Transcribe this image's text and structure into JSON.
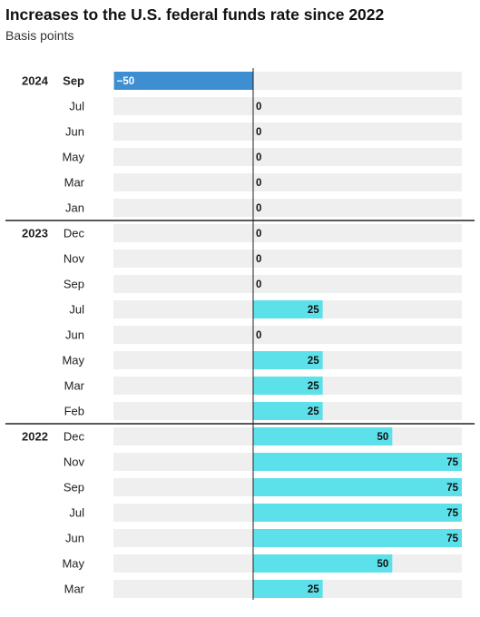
{
  "title": "Increases to the U.S. federal funds rate since 2022",
  "subtitle": "Basis points",
  "colors": {
    "positive": "#5ce0ea",
    "negative": "#3d8fd1",
    "track": "#efefef",
    "divider": "#222222",
    "zero_line": "#222222"
  },
  "chart_data": {
    "type": "bar",
    "orientation": "horizontal",
    "title": "Increases to the U.S. federal funds rate since 2022",
    "subtitle": "Basis points",
    "xlim": [
      -50,
      75
    ],
    "grid": false,
    "groups": [
      {
        "year": "2024",
        "rows": [
          {
            "month": "Sep",
            "value": -50
          },
          {
            "month": "Jul",
            "value": 0
          },
          {
            "month": "Jun",
            "value": 0
          },
          {
            "month": "May",
            "value": 0
          },
          {
            "month": "Mar",
            "value": 0
          },
          {
            "month": "Jan",
            "value": 0
          }
        ]
      },
      {
        "year": "2023",
        "rows": [
          {
            "month": "Dec",
            "value": 0
          },
          {
            "month": "Nov",
            "value": 0
          },
          {
            "month": "Sep",
            "value": 0
          },
          {
            "month": "Jul",
            "value": 25
          },
          {
            "month": "Jun",
            "value": 0
          },
          {
            "month": "May",
            "value": 25
          },
          {
            "month": "Mar",
            "value": 25
          },
          {
            "month": "Feb",
            "value": 25
          }
        ]
      },
      {
        "year": "2022",
        "rows": [
          {
            "month": "Dec",
            "value": 50
          },
          {
            "month": "Nov",
            "value": 75
          },
          {
            "month": "Sep",
            "value": 75
          },
          {
            "month": "Jul",
            "value": 75
          },
          {
            "month": "Jun",
            "value": 75
          },
          {
            "month": "May",
            "value": 50
          },
          {
            "month": "Mar",
            "value": 25
          }
        ]
      }
    ]
  }
}
